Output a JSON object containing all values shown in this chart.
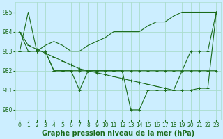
{
  "background_color": "#cceeff",
  "grid_color": "#aaddcc",
  "line_color": "#1a6b1a",
  "marker_color": "#1a6b1a",
  "xlabel": "Graphe pression niveau de la mer (hPa)",
  "xlabel_fontsize": 7,
  "tick_fontsize": 5.5,
  "xlim": [
    -0.5,
    23.5
  ],
  "ylim": [
    979.5,
    985.5
  ],
  "yticks": [
    980,
    981,
    982,
    983,
    984,
    985
  ],
  "xticks": [
    0,
    1,
    2,
    3,
    4,
    5,
    6,
    7,
    8,
    9,
    10,
    11,
    12,
    13,
    14,
    15,
    16,
    17,
    18,
    19,
    20,
    21,
    22,
    23
  ],
  "series_diagonal": [
    984.0,
    983.3,
    983.1,
    982.9,
    982.7,
    982.5,
    982.3,
    982.1,
    982.0,
    981.9,
    981.8,
    981.7,
    981.6,
    981.5,
    981.4,
    981.3,
    981.2,
    981.1,
    981.0,
    981.0,
    981.0,
    981.1,
    981.1,
    985.0
  ],
  "series_flat": [
    983.0,
    983.0,
    983.0,
    983.0,
    982.0,
    982.0,
    982.0,
    982.0,
    982.0,
    982.0,
    982.0,
    982.0,
    982.0,
    982.0,
    982.0,
    982.0,
    982.0,
    982.0,
    982.0,
    982.0,
    982.0,
    982.0,
    982.0,
    982.0
  ],
  "series_dip": [
    983.0,
    985.0,
    983.0,
    983.0,
    982.0,
    982.0,
    982.0,
    981.0,
    982.0,
    982.0,
    982.0,
    982.0,
    982.0,
    980.0,
    980.0,
    981.0,
    981.0,
    981.0,
    981.0,
    982.0,
    983.0,
    983.0,
    983.0,
    985.0
  ],
  "series_rise": [
    984.0,
    983.0,
    983.0,
    983.3,
    983.5,
    983.3,
    983.0,
    983.0,
    983.3,
    983.5,
    983.7,
    984.0,
    984.0,
    984.0,
    984.0,
    984.3,
    984.5,
    984.5,
    984.8,
    985.0,
    985.0,
    985.0,
    985.0,
    985.0
  ]
}
